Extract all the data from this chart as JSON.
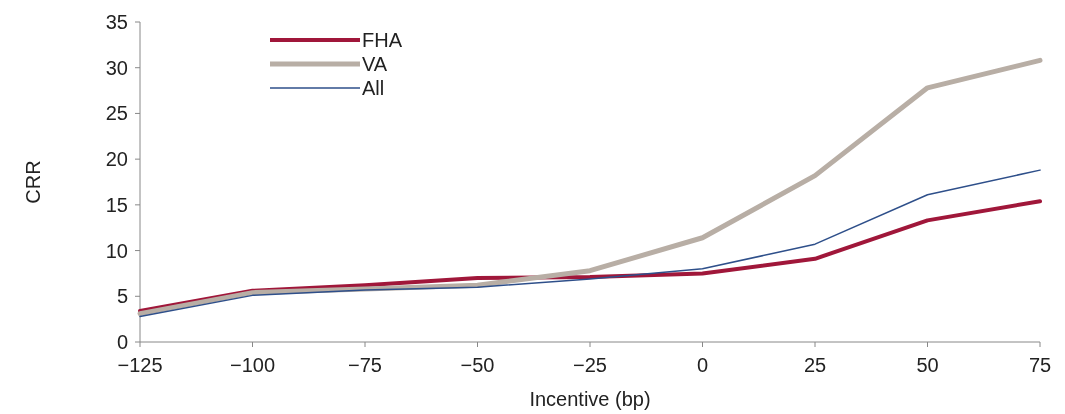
{
  "chart_data": {
    "type": "line",
    "xlabel": "Incentive (bp)",
    "ylabel": "CRR",
    "x": [
      -125,
      -100,
      -75,
      -50,
      -25,
      0,
      25,
      50,
      75
    ],
    "xlim": [
      -125,
      75
    ],
    "xticks": [
      {
        "value": -125,
        "label": "−125"
      },
      {
        "value": -100,
        "label": "−100"
      },
      {
        "value": -75,
        "label": "−75"
      },
      {
        "value": -50,
        "label": "−50"
      },
      {
        "value": -25,
        "label": "−25"
      },
      0,
      25,
      50,
      75
    ],
    "ylim": [
      0,
      35
    ],
    "yticks": [
      0,
      5,
      10,
      15,
      20,
      25,
      30,
      35
    ],
    "grid": false,
    "legend": "top left",
    "marker": "none",
    "line_style": "solid",
    "series": [
      {
        "name": "FHA",
        "color": "#a0173a",
        "values": [
          3.4,
          5.6,
          6.2,
          7.0,
          7.1,
          7.5,
          9.1,
          13.3,
          15.4
        ]
      },
      {
        "name": "VA",
        "color": "#b8aea5",
        "values": [
          3.1,
          5.4,
          5.8,
          6.2,
          7.8,
          11.4,
          18.2,
          27.8,
          30.8
        ]
      },
      {
        "name": "All",
        "color": "#2e4f8a",
        "values": [
          2.8,
          5.1,
          5.7,
          6.0,
          6.9,
          8.0,
          10.7,
          16.1,
          18.8
        ]
      }
    ]
  }
}
